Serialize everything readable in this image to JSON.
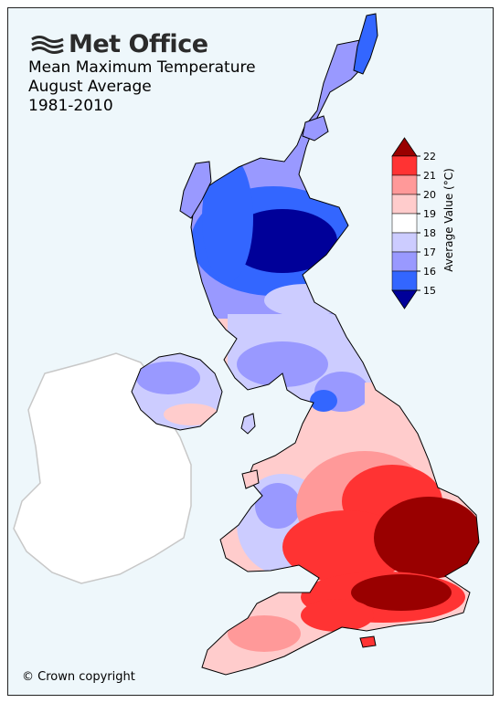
{
  "brand": {
    "name": "Met Office",
    "logo_icon": "met-office-wave-icon"
  },
  "title": {
    "line1": "Mean Maximum Temperature",
    "line2": "August Average",
    "line3": "1981-2010"
  },
  "legend": {
    "label": "Average Value (°C)",
    "ticks": [
      "22",
      "21",
      "20",
      "19",
      "18",
      "17",
      "16",
      "15"
    ],
    "bands": [
      {
        "range": [
          21,
          22
        ],
        "color": "#ff3333"
      },
      {
        "range": [
          20,
          21
        ],
        "color": "#ff9999"
      },
      {
        "range": [
          19,
          20
        ],
        "color": "#ffcccc"
      },
      {
        "range": [
          18,
          19
        ],
        "color": "#ffffff"
      },
      {
        "range": [
          17,
          18
        ],
        "color": "#ccccff"
      },
      {
        "range": [
          16,
          17
        ],
        "color": "#9999ff"
      },
      {
        "range": [
          15,
          16
        ],
        "color": "#3366ff"
      }
    ],
    "over_color": "#990000",
    "under_color": "#000099"
  },
  "copyright": "© Crown copyright",
  "colors": {
    "background": "#eef7fb",
    "ireland": "#ffffff",
    "ireland_outline": "#c8c8c8",
    "coast": "#000000"
  }
}
